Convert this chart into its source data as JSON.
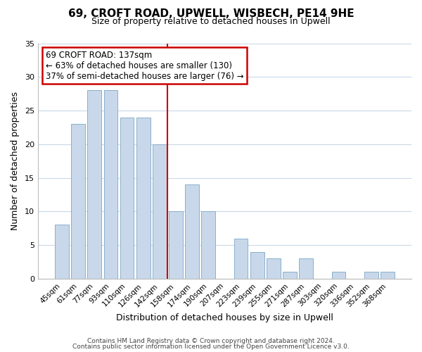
{
  "title": "69, CROFT ROAD, UPWELL, WISBECH, PE14 9HE",
  "subtitle": "Size of property relative to detached houses in Upwell",
  "xlabel": "Distribution of detached houses by size in Upwell",
  "ylabel": "Number of detached properties",
  "bar_labels": [
    "45sqm",
    "61sqm",
    "77sqm",
    "93sqm",
    "110sqm",
    "126sqm",
    "142sqm",
    "158sqm",
    "174sqm",
    "190sqm",
    "207sqm",
    "223sqm",
    "239sqm",
    "255sqm",
    "271sqm",
    "287sqm",
    "303sqm",
    "320sqm",
    "336sqm",
    "352sqm",
    "368sqm"
  ],
  "bar_values": [
    8,
    23,
    28,
    28,
    24,
    24,
    20,
    10,
    14,
    10,
    0,
    6,
    4,
    3,
    1,
    3,
    0,
    1,
    0,
    1,
    1
  ],
  "bar_color": "#c8d8ea",
  "bar_edge_color": "#8ab0cc",
  "reference_line_idx": 6,
  "annotation_title": "69 CROFT ROAD: 137sqm",
  "annotation_line1": "← 63% of detached houses are smaller (130)",
  "annotation_line2": "37% of semi-detached houses are larger (76) →",
  "annotation_box_color": "#ffffff",
  "annotation_box_edge": "#cc0000",
  "vline_color": "#cc0000",
  "ylim": [
    0,
    35
  ],
  "yticks": [
    0,
    5,
    10,
    15,
    20,
    25,
    30,
    35
  ],
  "footer1": "Contains HM Land Registry data © Crown copyright and database right 2024.",
  "footer2": "Contains public sector information licensed under the Open Government Licence v3.0.",
  "background_color": "#ffffff",
  "grid_color": "#c8d8e8"
}
